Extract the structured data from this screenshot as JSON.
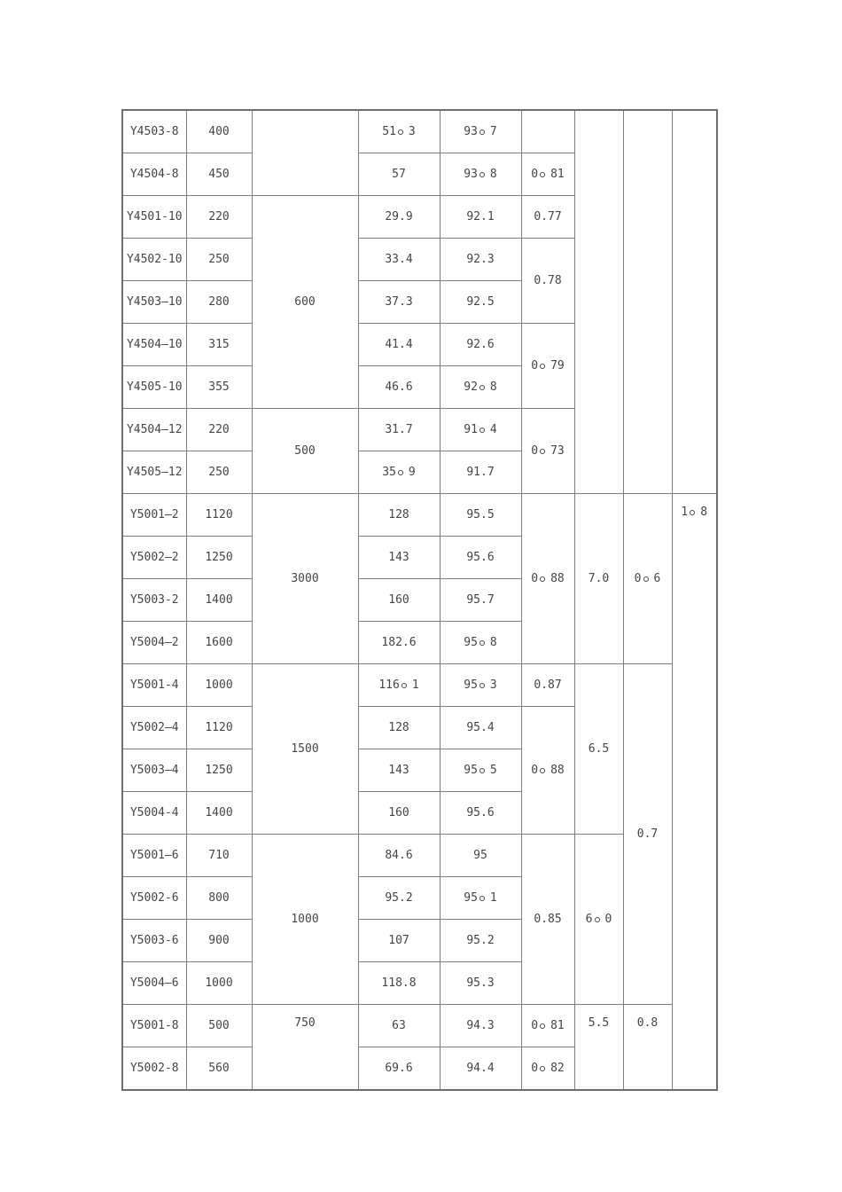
{
  "colors": {
    "background": "#ffffff",
    "grid_border": "#7d7d7d",
    "outer_border": "#6e6e6e",
    "text": "#454545"
  },
  "table": {
    "rows": [
      {
        "c1": "Y4503-8",
        "c2": "400",
        "c3": "",
        "c4": "51。3",
        "c5": "93。7",
        "c6": "",
        "c7": "",
        "c8": "",
        "c9": ""
      },
      {
        "c1": "Y4504-8",
        "c2": "450",
        "c4": "57",
        "c5": "93。8",
        "c6": "0。81"
      },
      {
        "c1": "Y4501-10",
        "c2": "220",
        "c3": "600",
        "c4": "29.9",
        "c5": "92.1",
        "c6": "0.77"
      },
      {
        "c1": "Y4502-10",
        "c2": "250",
        "c4": "33.4",
        "c5": "92.3",
        "c6": "0.78"
      },
      {
        "c1": "Y4503—10",
        "c2": "280",
        "c4": "37.3",
        "c5": "92.5"
      },
      {
        "c1": "Y4504—10",
        "c2": "315",
        "c4": "41.4",
        "c5": "92.6",
        "c6": "0。79"
      },
      {
        "c1": "Y4505-10",
        "c2": "355",
        "c4": "46.6",
        "c5": "92。8"
      },
      {
        "c1": "Y4504—12",
        "c2": "220",
        "c3": "500",
        "c4": "31.7",
        "c5": "91。4",
        "c6": "0。73"
      },
      {
        "c1": "Y4505—12",
        "c2": "250",
        "c4": "35。9",
        "c5": "91.7"
      },
      {
        "c1": "Y5001—2",
        "c2": "1120",
        "c3": "3000",
        "c4": "128",
        "c5": "95.5",
        "c6": "0。88",
        "c7": "7.0",
        "c8": "0。6",
        "c9": "1。8"
      },
      {
        "c1": "Y5002—2",
        "c2": "1250",
        "c4": "143",
        "c5": "95.6"
      },
      {
        "c1": "Y5003-2",
        "c2": "1400",
        "c4": "160",
        "c5": "95.7"
      },
      {
        "c1": "Y5004—2",
        "c2": "1600",
        "c4": "182.6",
        "c5": "95。8"
      },
      {
        "c1": "Y5001-4",
        "c2": "1000",
        "c3": "1500",
        "c4": "116。1",
        "c5": "95。3",
        "c6": "0.87",
        "c7": "6.5",
        "c8": "0.7"
      },
      {
        "c1": "Y5002—4",
        "c2": "1120",
        "c4": "128",
        "c5": "95.4",
        "c6": "0。88"
      },
      {
        "c1": "Y5003—4",
        "c2": "1250",
        "c4": "143",
        "c5": "95。5"
      },
      {
        "c1": "Y5004-4",
        "c2": "1400",
        "c4": "160",
        "c5": "95.6"
      },
      {
        "c1": "Y5001—6",
        "c2": "710",
        "c3": "1000",
        "c4": "84.6",
        "c5": "95",
        "c6": "0.85",
        "c7": "6。0"
      },
      {
        "c1": "Y5002-6",
        "c2": "800",
        "c4": "95.2",
        "c5": "95。1"
      },
      {
        "c1": "Y5003-6",
        "c2": "900",
        "c4": "107",
        "c5": "95.2"
      },
      {
        "c1": "Y5004—6",
        "c2": "1000",
        "c4": "118.8",
        "c5": "95.3"
      },
      {
        "c1": "Y5001-8",
        "c2": "500",
        "c3": "750",
        "c4": "63",
        "c5": "94.3",
        "c6": "0。81",
        "c7": "5.5",
        "c8": "0.8"
      },
      {
        "c1": "Y5002-8",
        "c2": "560",
        "c4": "69.6",
        "c5": "94.4",
        "c6": "0。82"
      }
    ]
  }
}
